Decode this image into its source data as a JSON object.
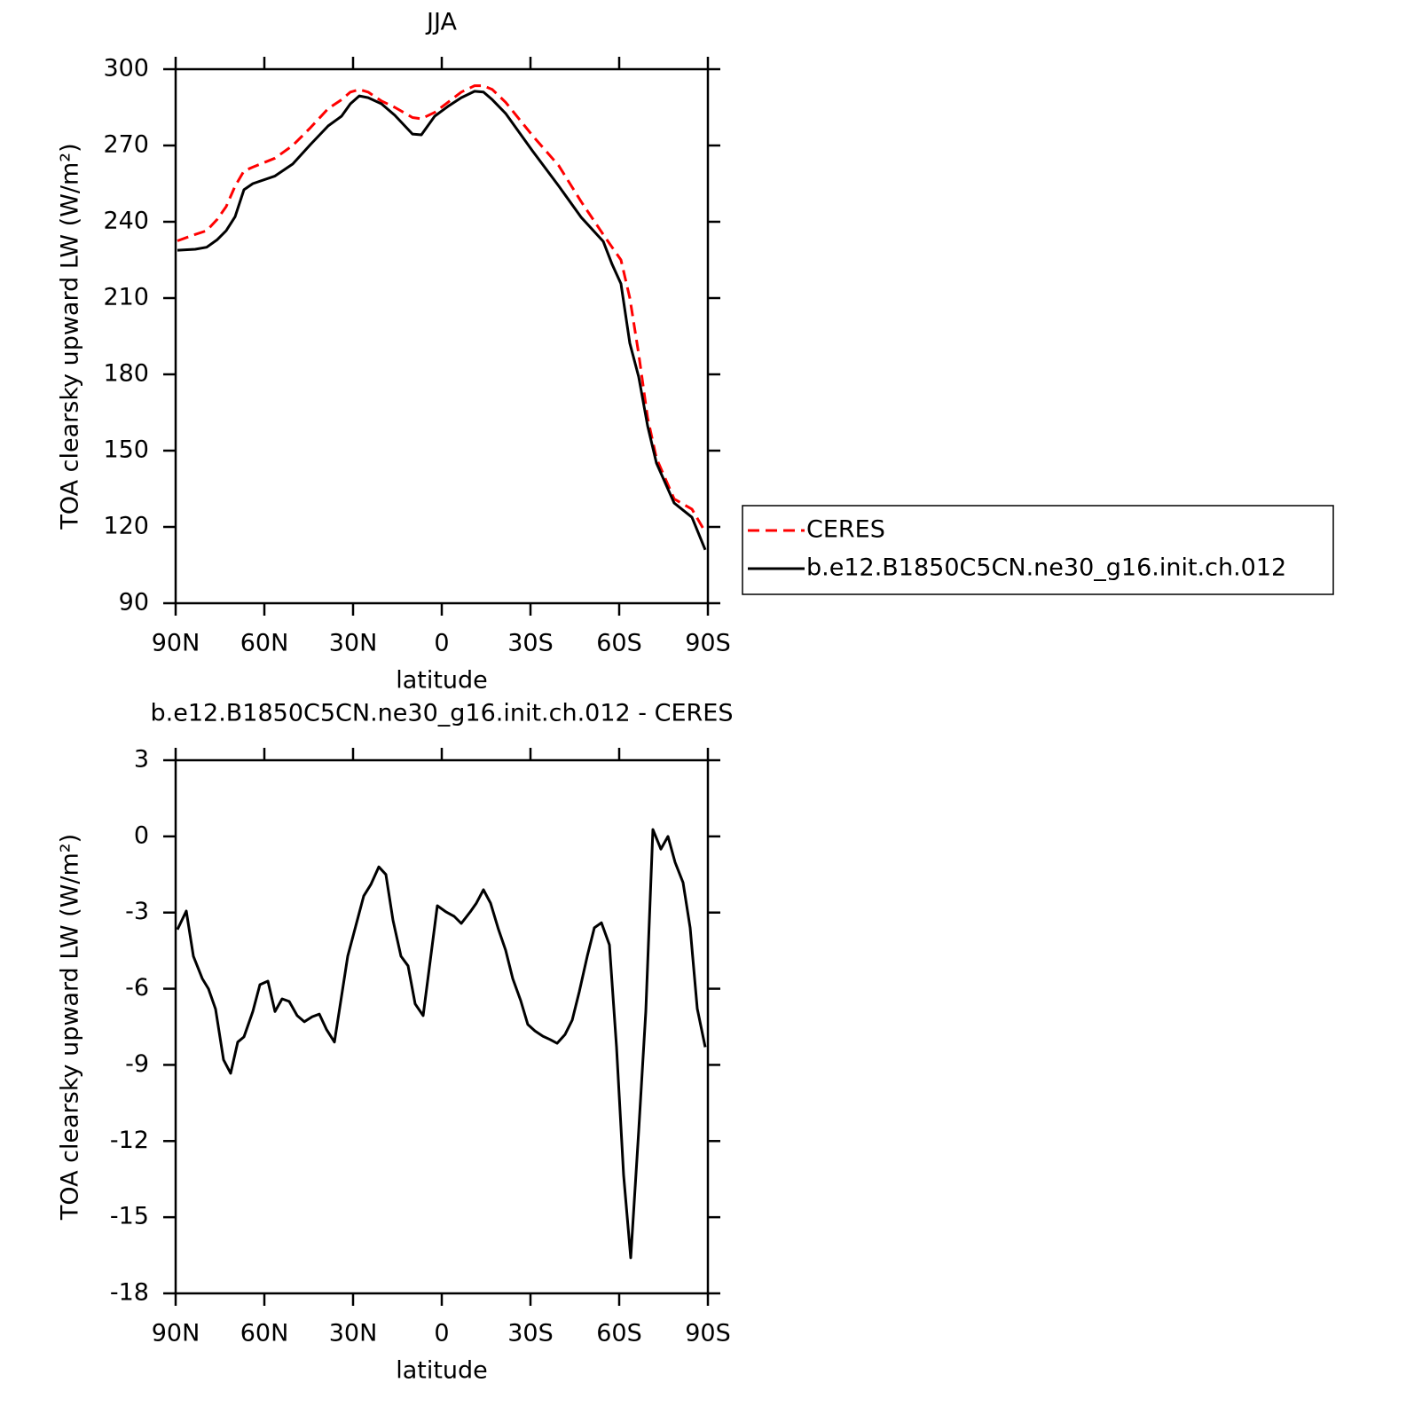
{
  "chart_data": [
    {
      "type": "line",
      "title": "JJA",
      "x_label": "latitude",
      "y_label": "TOA clearsky upward LW (W/m²)",
      "xlim": [
        90,
        -90
      ],
      "xticks": [
        {
          "value": 90,
          "label": "90N"
        },
        {
          "value": 60,
          "label": "60N"
        },
        {
          "value": 30,
          "label": "30N"
        },
        0,
        {
          "value": -30,
          "label": "30S"
        },
        {
          "value": -60,
          "label": "60S"
        },
        {
          "value": -90,
          "label": "90S"
        }
      ],
      "ylim": [
        90,
        300
      ],
      "yticks": [
        90,
        120,
        150,
        180,
        210,
        240,
        270,
        300
      ],
      "legend": "right",
      "x": [
        89.4,
        83.4,
        79.5,
        75.9,
        72.9,
        69.9,
        66.9,
        63.9,
        56.4,
        50.4,
        44.4,
        38.4,
        33.9,
        30.9,
        27.9,
        24.9,
        20.4,
        15.9,
        9.9,
        6.9,
        2.4,
        -2.1,
        -6.6,
        -11.1,
        -14.1,
        -17.1,
        -21.6,
        -30.6,
        -39.6,
        -47.1,
        -54.6,
        -57.6,
        -60.6,
        -63.6,
        -66.6,
        -69.6,
        -72.6,
        -78.6,
        -84.6,
        -89.1
      ],
      "series": [
        {
          "name": "CERES",
          "color": "#ff0000",
          "dashed": true,
          "values": [
            232.5,
            235,
            236.5,
            241,
            246,
            254,
            260,
            261.5,
            265,
            270,
            277,
            284.5,
            288,
            291,
            292,
            291,
            287.5,
            285,
            281,
            280.5,
            283,
            287,
            291,
            293.5,
            293.5,
            292,
            287,
            274,
            262,
            248,
            235,
            230,
            225,
            210,
            188,
            163,
            147,
            131,
            127,
            118
          ]
        },
        {
          "name": "b.e12.B1850C5CN.ne30_g16.init.ch.012",
          "color": "#000000",
          "dashed": false,
          "values": [
            228.8,
            229.2,
            230,
            233,
            236.5,
            242,
            252.6,
            255,
            258,
            262.7,
            270.4,
            277.7,
            281.5,
            286.4,
            289.5,
            288.8,
            286.4,
            281.9,
            274.5,
            274.2,
            281.5,
            285.4,
            288.8,
            291.3,
            291,
            288,
            282.6,
            268,
            254,
            241.8,
            232.3,
            223.3,
            215.6,
            192.2,
            179,
            159.8,
            145.1,
            129.4,
            123.8,
            111
          ]
        }
      ]
    },
    {
      "type": "line",
      "title": "b.e12.B1850C5CN.ne30_g16.init.ch.012 - CERES",
      "x_label": "latitude",
      "y_label": "TOA clearsky upward LW (W/m²)",
      "xlim": [
        90,
        -90
      ],
      "xticks": [
        {
          "value": 90,
          "label": "90N"
        },
        {
          "value": 60,
          "label": "60N"
        },
        {
          "value": 30,
          "label": "30N"
        },
        0,
        {
          "value": -30,
          "label": "30S"
        },
        {
          "value": -60,
          "label": "60S"
        },
        {
          "value": -90,
          "label": "90S"
        }
      ],
      "ylim": [
        -18,
        3
      ],
      "yticks": [
        -18,
        -15,
        -12,
        -9,
        -6,
        -3,
        0,
        3
      ],
      "x": [
        89.4,
        86.4,
        84,
        81,
        78.9,
        76.5,
        73.8,
        71.4,
        69,
        66.9,
        63.9,
        61.5,
        58.8,
        56.4,
        54,
        51.6,
        48.9,
        46.5,
        43.8,
        41.4,
        39,
        36.3,
        31.8,
        26.4,
        24,
        21.3,
        18.9,
        16.5,
        13.8,
        11.4,
        9,
        6.3,
        1.5,
        -1.5,
        -4.2,
        -6.6,
        -9.6,
        -11.7,
        -14.1,
        -16.5,
        -19.2,
        -21.6,
        -24,
        -26.7,
        -29.1,
        -31.5,
        -34.2,
        -36.6,
        -39,
        -41.7,
        -44.1,
        -46.5,
        -49.2,
        -51.6,
        -54,
        -56.7,
        -59.1,
        -61.5,
        -63.9,
        -66.6,
        -69,
        -71.4,
        -74.1,
        -76.5,
        -78.9,
        -81.6,
        -84,
        -86.4,
        -89.1
      ],
      "series": [
        {
          "color": "#000000",
          "dashed": false,
          "values": [
            -3.67,
            -2.94,
            -4.72,
            -5.6,
            -6.0,
            -6.8,
            -8.8,
            -9.33,
            -8.1,
            -7.9,
            -6.9,
            -5.84,
            -5.7,
            -6.9,
            -6.4,
            -6.5,
            -7.06,
            -7.3,
            -7.1,
            -7.0,
            -7.6,
            -8.1,
            -4.72,
            -2.35,
            -1.9,
            -1.2,
            -1.5,
            -3.3,
            -4.72,
            -5.1,
            -6.6,
            -7.06,
            -2.73,
            -2.98,
            -3.15,
            -3.43,
            -2.98,
            -2.63,
            -2.1,
            -2.63,
            -3.67,
            -4.48,
            -5.6,
            -6.47,
            -7.41,
            -7.66,
            -7.87,
            -8.0,
            -8.15,
            -7.8,
            -7.24,
            -6.12,
            -4.72,
            -3.6,
            -3.4,
            -4.27,
            -8.3,
            -13.35,
            -16.6,
            -11.6,
            -6.9,
            0.27,
            -0.5,
            0,
            -1.02,
            -1.82,
            -3.6,
            -6.78,
            -8.3
          ]
        }
      ]
    }
  ]
}
